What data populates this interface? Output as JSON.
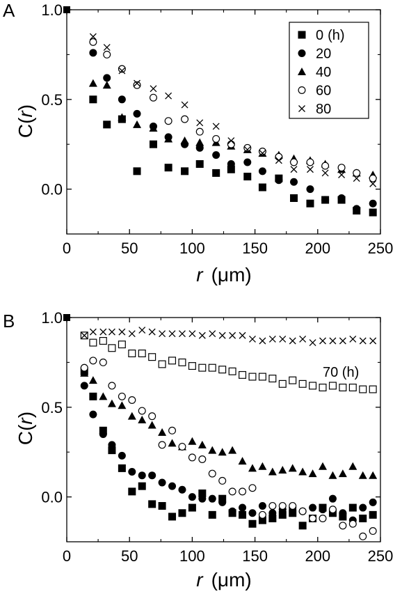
{
  "chart_data": [
    {
      "panel": "A",
      "type": "scatter",
      "xlabel": {
        "var": "r",
        "unit": "(μm)"
      },
      "ylabel": {
        "pre": "C(",
        "var": "r",
        "post": ")"
      },
      "xlim": [
        0,
        250
      ],
      "ylim": [
        -0.25,
        1.0
      ],
      "xticks": [
        "0",
        "50",
        "100",
        "150",
        "200",
        "250"
      ],
      "yticks": [
        "1.0",
        "0.5",
        "0.0"
      ],
      "legend": {
        "placement": "top-right",
        "title_suffix": "(h)"
      },
      "origin_point": {
        "x": 0,
        "y": 1.0
      },
      "series": [
        {
          "name": "0",
          "marker": "filled-square",
          "x": [
            21,
            32,
            44,
            56,
            69,
            81,
            94,
            106,
            119,
            131,
            144,
            156,
            169,
            181,
            194,
            206,
            219,
            231,
            244
          ],
          "y": [
            0.5,
            0.36,
            0.39,
            0.1,
            0.25,
            0.12,
            0.1,
            0.14,
            0.09,
            0.11,
            0.07,
            0.01,
            0.06,
            -0.05,
            -0.08,
            -0.06,
            -0.06,
            -0.12,
            -0.13
          ]
        },
        {
          "name": "20",
          "marker": "filled-circle",
          "x": [
            21,
            32,
            44,
            56,
            69,
            81,
            94,
            106,
            119,
            131,
            144,
            156,
            169,
            181,
            194,
            206,
            219,
            231,
            244
          ],
          "y": [
            0.76,
            0.62,
            0.5,
            0.42,
            0.35,
            0.29,
            0.25,
            0.23,
            0.19,
            0.14,
            0.15,
            0.1,
            0.05,
            0.04,
            0.0,
            -0.06,
            -0.05,
            -0.11,
            -0.08
          ]
        },
        {
          "name": "40",
          "marker": "filled-triangle",
          "x": [
            21,
            32,
            44,
            56,
            69,
            81,
            94,
            106,
            119,
            131,
            144,
            156,
            169,
            181,
            194,
            206,
            219,
            231,
            244
          ],
          "y": [
            0.59,
            0.58,
            0.4,
            0.36,
            0.34,
            0.28,
            0.27,
            0.26,
            0.26,
            0.24,
            0.22,
            0.2,
            0.19,
            0.17,
            0.16,
            0.14,
            0.11,
            0.09,
            0.08
          ]
        },
        {
          "name": "60",
          "marker": "open-circle",
          "x": [
            21,
            32,
            44,
            56,
            69,
            81,
            94,
            106,
            119,
            131,
            144,
            156,
            169,
            181,
            194,
            206,
            219,
            231,
            244
          ],
          "y": [
            0.82,
            0.75,
            0.67,
            0.58,
            0.51,
            0.38,
            0.39,
            0.32,
            0.28,
            0.25,
            0.23,
            0.21,
            0.18,
            0.15,
            0.15,
            0.13,
            0.12,
            0.09,
            0.06
          ]
        },
        {
          "name": "80",
          "marker": "cross",
          "x": [
            21,
            32,
            44,
            56,
            69,
            81,
            94,
            106,
            119,
            131,
            144,
            156,
            169,
            181,
            194,
            206,
            219,
            231,
            244
          ],
          "y": [
            0.85,
            0.79,
            0.66,
            0.59,
            0.56,
            0.52,
            0.47,
            0.37,
            0.35,
            0.27,
            0.22,
            0.2,
            0.16,
            0.11,
            0.11,
            0.09,
            0.08,
            0.06,
            0.03
          ]
        }
      ]
    },
    {
      "panel": "B",
      "type": "scatter",
      "xlabel": {
        "var": "r",
        "unit": "(μm)"
      },
      "ylabel": {
        "pre": "C(",
        "var": "r",
        "post": ")"
      },
      "xlim": [
        0,
        250
      ],
      "ylim": [
        -0.25,
        1.0
      ],
      "xticks": [
        "0",
        "50",
        "100",
        "150",
        "200",
        "250"
      ],
      "yticks": [
        "1.0",
        "0.5",
        "0.0"
      ],
      "annotation": "70 (h)",
      "origin_point": {
        "x": 0,
        "y": 1.0
      },
      "series": [
        {
          "marker": "filled-square",
          "x": [
            14,
            21,
            29,
            36,
            44,
            52,
            60,
            68,
            76,
            84,
            92,
            100,
            108,
            116,
            124,
            132,
            140,
            148,
            156,
            164,
            172,
            180,
            188,
            196,
            204,
            212,
            220,
            228,
            236,
            244
          ],
          "y": [
            0.7,
            0.56,
            0.37,
            0.26,
            0.16,
            0.03,
            0.06,
            -0.04,
            -0.05,
            -0.11,
            -0.09,
            -0.06,
            0.02,
            -0.1,
            -0.01,
            -0.09,
            -0.1,
            -0.15,
            -0.13,
            -0.12,
            -0.1,
            -0.09,
            -0.16,
            -0.12,
            -0.06,
            -0.09,
            -0.11,
            -0.06,
            -0.12,
            -0.1
          ]
        },
        {
          "marker": "filled-circle",
          "x": [
            14,
            21,
            29,
            36,
            44,
            52,
            60,
            68,
            76,
            84,
            92,
            100,
            108,
            116,
            124,
            132,
            140,
            148,
            156,
            164,
            172,
            180,
            188,
            196,
            204,
            212,
            220,
            228,
            236,
            244
          ],
          "y": [
            0.62,
            0.46,
            0.35,
            0.29,
            0.23,
            0.14,
            0.12,
            0.12,
            0.08,
            0.06,
            0.04,
            0.0,
            -0.01,
            -0.01,
            -0.03,
            -0.08,
            -0.06,
            -0.09,
            -0.05,
            -0.09,
            -0.07,
            -0.06,
            -0.08,
            -0.06,
            -0.07,
            -0.01,
            -0.09,
            -0.13,
            -0.06,
            -0.03
          ]
        },
        {
          "marker": "filled-triangle",
          "x": [
            14,
            21,
            29,
            36,
            44,
            52,
            60,
            68,
            76,
            84,
            92,
            100,
            108,
            116,
            124,
            132,
            140,
            148,
            156,
            164,
            172,
            180,
            188,
            196,
            204,
            212,
            220,
            228,
            236,
            244
          ],
          "y": [
            0.69,
            0.65,
            0.56,
            0.52,
            0.51,
            0.45,
            0.43,
            0.4,
            0.36,
            0.3,
            0.28,
            0.31,
            0.29,
            0.26,
            0.25,
            0.26,
            0.2,
            0.16,
            0.17,
            0.14,
            0.15,
            0.16,
            0.14,
            0.13,
            0.17,
            0.12,
            0.13,
            0.17,
            0.12,
            0.12
          ]
        },
        {
          "marker": "open-circle",
          "x": [
            14,
            21,
            29,
            36,
            44,
            52,
            60,
            68,
            76,
            84,
            92,
            100,
            108,
            116,
            124,
            132,
            140,
            148,
            156,
            164,
            172,
            180,
            188,
            196,
            204,
            212,
            220,
            228,
            236,
            244
          ],
          "y": [
            0.72,
            0.76,
            0.75,
            0.62,
            0.56,
            0.54,
            0.48,
            0.45,
            0.29,
            0.37,
            0.28,
            0.22,
            0.21,
            0.13,
            0.09,
            0.03,
            0.03,
            0.05,
            -0.1,
            -0.05,
            -0.05,
            -0.05,
            -0.08,
            -0.12,
            -0.12,
            -0.07,
            -0.16,
            -0.15,
            -0.22,
            -0.19
          ]
        },
        {
          "name": "70",
          "marker": "open-square",
          "x": [
            14,
            21,
            29,
            36,
            44,
            52,
            60,
            68,
            76,
            84,
            92,
            100,
            108,
            116,
            124,
            132,
            140,
            148,
            156,
            164,
            172,
            180,
            188,
            196,
            204,
            212,
            220,
            228,
            236,
            244
          ],
          "y": [
            0.9,
            0.86,
            0.87,
            0.83,
            0.85,
            0.8,
            0.8,
            0.78,
            0.74,
            0.76,
            0.75,
            0.73,
            0.72,
            0.72,
            0.71,
            0.7,
            0.68,
            0.67,
            0.67,
            0.66,
            0.63,
            0.65,
            0.63,
            0.62,
            0.61,
            0.62,
            0.61,
            0.61,
            0.6,
            0.6
          ]
        },
        {
          "marker": "cross",
          "x": [
            14,
            21,
            29,
            36,
            44,
            52,
            60,
            68,
            76,
            84,
            92,
            100,
            108,
            116,
            124,
            132,
            140,
            148,
            156,
            164,
            172,
            180,
            188,
            196,
            204,
            212,
            220,
            228,
            236,
            244
          ],
          "y": [
            0.9,
            0.92,
            0.92,
            0.92,
            0.92,
            0.91,
            0.93,
            0.92,
            0.91,
            0.91,
            0.91,
            0.91,
            0.9,
            0.91,
            0.9,
            0.9,
            0.9,
            0.88,
            0.87,
            0.88,
            0.88,
            0.87,
            0.88,
            0.86,
            0.87,
            0.87,
            0.87,
            0.88,
            0.87,
            0.87
          ]
        }
      ]
    }
  ]
}
